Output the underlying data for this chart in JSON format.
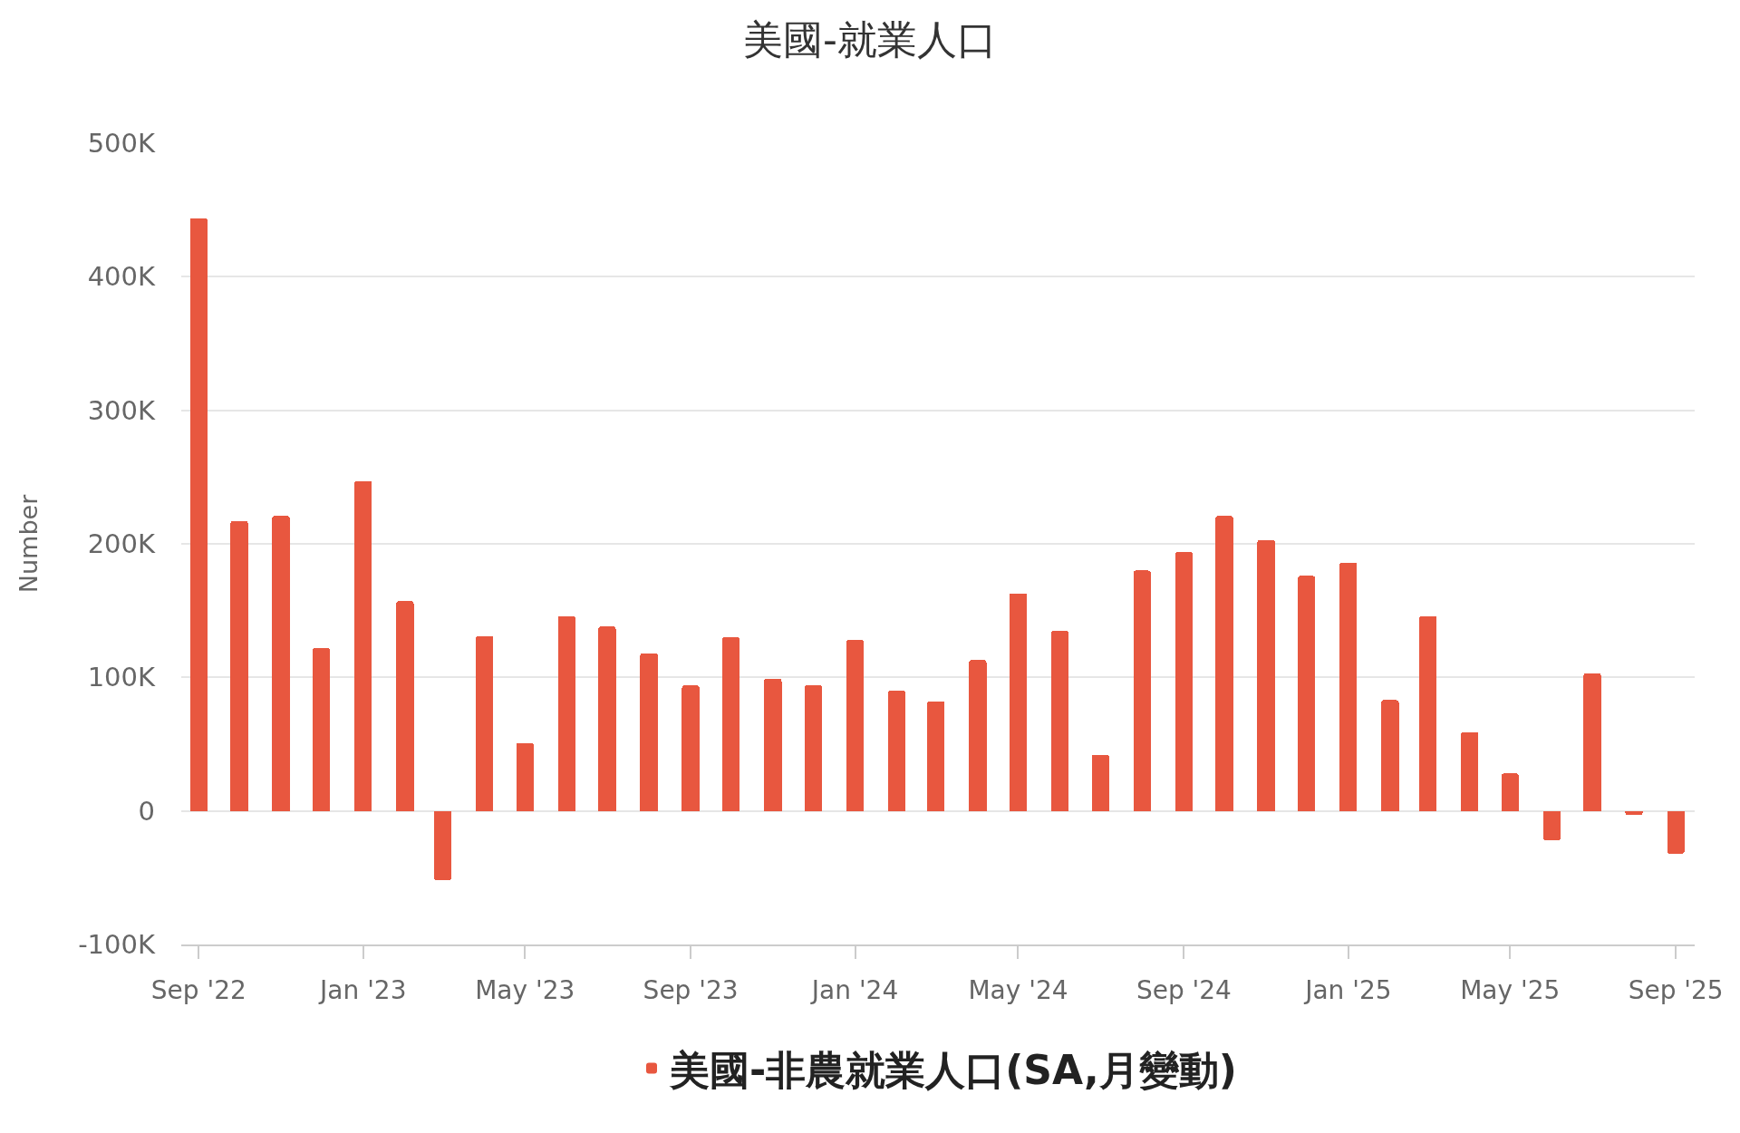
{
  "chart_data": {
    "type": "bar",
    "title": "美國-就業人口",
    "ylabel": "Number",
    "x": [
      "2022-09",
      "2022-10",
      "2022-11",
      "2022-12",
      "2023-01",
      "2023-02",
      "2023-03",
      "2023-04",
      "2023-05",
      "2023-06",
      "2023-07",
      "2023-08",
      "2023-09",
      "2023-10",
      "2023-11",
      "2023-12",
      "2024-01",
      "2024-02",
      "2024-03",
      "2024-04",
      "2024-05",
      "2024-06",
      "2024-07",
      "2024-08",
      "2024-09",
      "2024-10",
      "2024-11",
      "2024-12",
      "2025-01",
      "2025-02",
      "2025-03",
      "2025-04",
      "2025-05",
      "2025-06",
      "2025-07",
      "2025-08",
      "2025-09"
    ],
    "series": [
      {
        "name": "美國-非農就業人口(SA,月變動)",
        "color": "#e8573f",
        "values": [
          444000,
          217000,
          221000,
          122000,
          247000,
          157000,
          -52000,
          131000,
          51000,
          146000,
          138000,
          118000,
          94000,
          130000,
          99000,
          94000,
          128000,
          90000,
          82000,
          113000,
          163000,
          135000,
          42000,
          180000,
          194000,
          221000,
          203000,
          176000,
          186000,
          83000,
          146000,
          59000,
          28000,
          -22000,
          103000,
          -3000,
          -32000
        ]
      }
    ],
    "xlim": [
      "2022-08-19",
      "2025-09-15"
    ],
    "xticks": [
      {
        "value": "2022-09",
        "label": "Sep '22"
      },
      {
        "value": "2023-01",
        "label": "Jan '23"
      },
      {
        "value": "2023-05",
        "label": "May '23"
      },
      {
        "value": "2023-09",
        "label": "Sep '23"
      },
      {
        "value": "2024-01",
        "label": "Jan '24"
      },
      {
        "value": "2024-05",
        "label": "May '24"
      },
      {
        "value": "2024-09",
        "label": "Sep '24"
      },
      {
        "value": "2025-01",
        "label": "Jan '25"
      },
      {
        "value": "2025-05",
        "label": "May '25"
      },
      {
        "value": "2025-09",
        "label": "Sep '25"
      }
    ],
    "ylim": [
      -100000,
      500000
    ],
    "yticks": [
      {
        "value": -100000,
        "label": "-100K"
      },
      0,
      {
        "value": 100000,
        "label": "100K"
      },
      {
        "value": 200000,
        "label": "200K"
      },
      {
        "value": 300000,
        "label": "300K"
      },
      {
        "value": 400000,
        "label": "400K"
      },
      {
        "value": 500000,
        "label": "500K"
      }
    ],
    "grid": "y",
    "legend": "bottom"
  }
}
